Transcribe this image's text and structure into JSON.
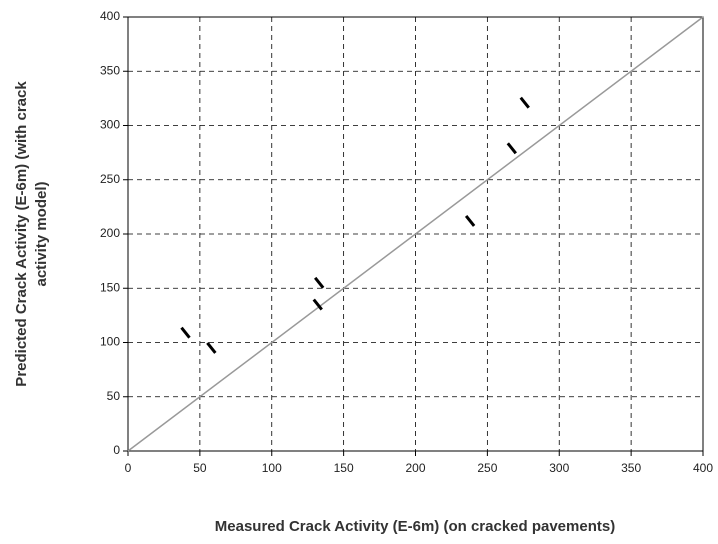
{
  "chart_data": {
    "type": "scatter",
    "x_label": "Measured Crack Activity (E-6m) (on cracked pavements)",
    "y_label": [
      "Predicted Crack Activity (E-6m) (with crack",
      "activity model)"
    ],
    "series": [
      {
        "color": "#000000",
        "x": [
          40,
          58,
          133,
          132,
          238,
          267,
          276
        ],
        "values": [
          109,
          95,
          155,
          135,
          212,
          279,
          321
        ]
      }
    ],
    "reference_line": {
      "color": "#999999",
      "x": [
        0,
        400
      ],
      "values": [
        0,
        400
      ]
    },
    "xlim": [
      0,
      400
    ],
    "ylim": [
      0,
      400
    ],
    "xticks": [
      0,
      50,
      100,
      150,
      200,
      250,
      300,
      350,
      400
    ],
    "yticks": [
      0,
      50,
      100,
      150,
      200,
      250,
      300,
      350,
      400
    ],
    "grid": true
  }
}
